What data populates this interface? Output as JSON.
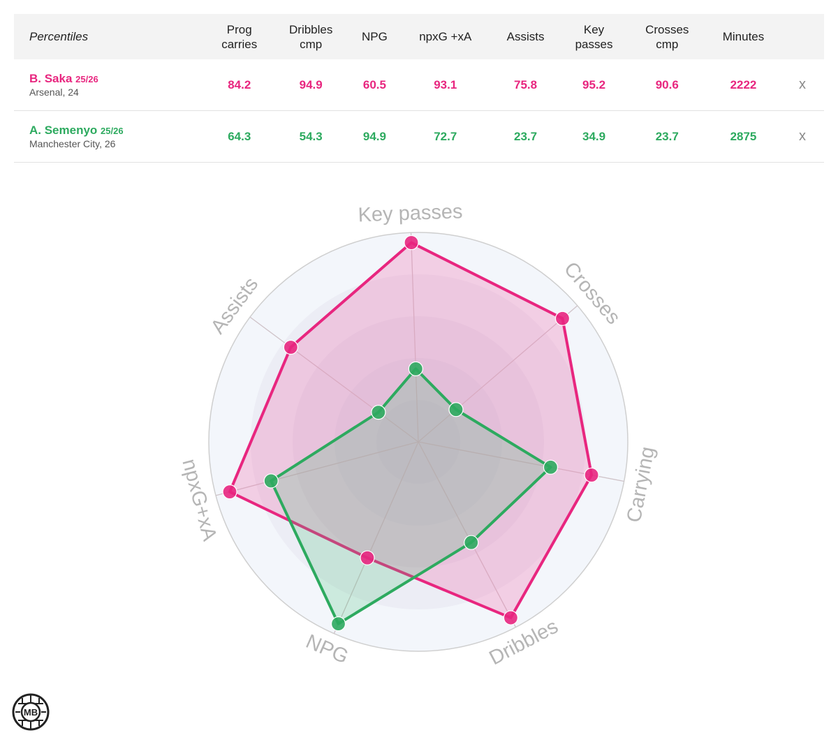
{
  "table": {
    "header_label": "Percentiles",
    "columns": [
      [
        "Prog",
        "carries"
      ],
      [
        "Dribbles",
        "cmp"
      ],
      [
        "NPG"
      ],
      [
        "npxG +xA"
      ],
      [
        "Assists"
      ],
      [
        "Key",
        "passes"
      ],
      [
        "Crosses",
        "cmp"
      ],
      [
        "Minutes"
      ]
    ],
    "remove_label": "x"
  },
  "players": [
    {
      "name": "B. Saka",
      "season": "25/26",
      "club": "Arsenal, 24",
      "color": "#e8267f",
      "values": [
        "84.2",
        "94.9",
        "60.5",
        "93.1",
        "75.8",
        "95.2",
        "90.6",
        "2222"
      ]
    },
    {
      "name": "A. Semenyo",
      "season": "25/26",
      "club": "Manchester City, 26",
      "color": "#2daa5f",
      "values": [
        "64.3",
        "54.3",
        "94.9",
        "72.7",
        "23.7",
        "34.9",
        "23.7",
        "2875"
      ]
    }
  ],
  "chart_data": {
    "type": "radar",
    "axes": [
      "Key passes",
      "Crosses",
      "Carrying",
      "Dribbles",
      "NPG",
      "npxG+xA",
      "Assists"
    ],
    "range": [
      0,
      100
    ],
    "series": [
      {
        "name": "B. Saka",
        "color": "#e8267f",
        "values": [
          95.2,
          90.6,
          84.2,
          94.9,
          60.5,
          93.1,
          75.8
        ]
      },
      {
        "name": "A. Semenyo",
        "color": "#2daa5f",
        "values": [
          34.9,
          23.7,
          64.3,
          54.3,
          94.9,
          72.7,
          23.7
        ]
      }
    ]
  },
  "logo": {
    "text": "MB"
  }
}
